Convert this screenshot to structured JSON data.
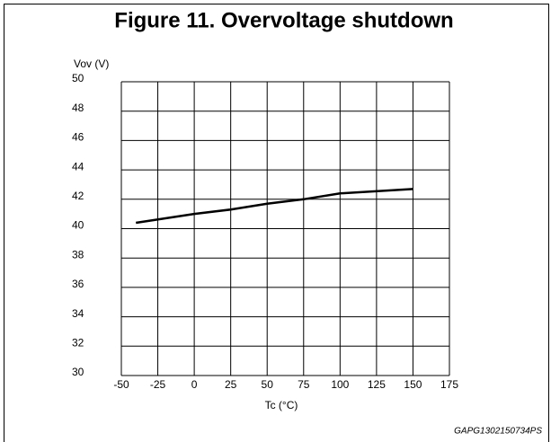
{
  "chart_data": {
    "type": "line",
    "title": "Figure 11. Overvoltage shutdown",
    "y_label": "Vov (V)",
    "x_label": "Tc (°C)",
    "note": "GAPG1302150734PS",
    "x": [
      -40,
      0,
      25,
      50,
      75,
      100,
      150
    ],
    "series": [
      {
        "name": "Vov",
        "color": "#000000",
        "values": [
          40.4,
          41.0,
          41.3,
          41.7,
          42.0,
          42.4,
          42.7
        ]
      }
    ],
    "xlim": [
      -50,
      175
    ],
    "xticks": [
      -50,
      -25,
      0,
      25,
      50,
      75,
      100,
      125,
      150,
      175
    ],
    "ylim": [
      30,
      50
    ],
    "yticks": [
      30,
      32,
      34,
      36,
      38,
      40,
      42,
      44,
      46,
      48,
      50
    ],
    "grid": true
  }
}
